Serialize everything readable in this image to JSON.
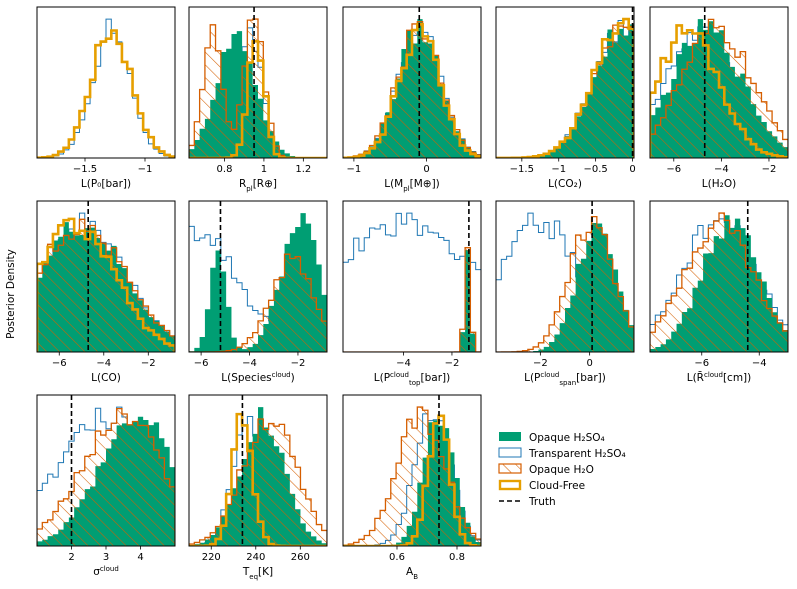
{
  "ylabel": "Posterior Density",
  "colors": {
    "opaque_h2so4": "#009e73",
    "transparent_h2so4": "#1f77b4",
    "opaque_h2o": "#d55e00",
    "cloud_free": "#e69f00",
    "truth": "#000000"
  },
  "legend": [
    {
      "key": "opaque_h2so4",
      "label": "Opaque H₂SO₄",
      "style": "fill"
    },
    {
      "key": "transparent_h2so4",
      "label": "Transparent H₂SO₄",
      "style": "outline"
    },
    {
      "key": "opaque_h2o",
      "label": "Opaque H₂O",
      "style": "hatch"
    },
    {
      "key": "cloud_free",
      "label": "Cloud-Free",
      "style": "thick"
    },
    {
      "key": "truth",
      "label": "Truth",
      "style": "dash"
    }
  ],
  "chart_data": [
    {
      "name": "logP0",
      "type": "histogram",
      "xlabel": "L(P₀[bar])",
      "xlim": [
        -1.9,
        -0.75
      ],
      "ticks": [
        -1.5,
        -1.0
      ],
      "truth": null,
      "series": {
        "cloud_free": {
          "mu": -1.28,
          "sd": 0.17
        },
        "transparent_h2so4": {
          "mu": -1.28,
          "sd": 0.16
        }
      }
    },
    {
      "name": "Rpl",
      "type": "histogram",
      "xlabel": "R_pl[R⊕]",
      "xlim": [
        0.62,
        1.32
      ],
      "ticks": [
        0.8,
        1.0,
        1.2
      ],
      "truth": 0.95,
      "series": {
        "opaque_h2so4": {
          "mu": 0.86,
          "sd": 0.1
        },
        "opaque_h2o": {
          "mu": 0.74,
          "sd": 0.05,
          "mu2": 0.95,
          "sd2": 0.05,
          "w2": 1.2
        },
        "cloud_free": {
          "mu": 0.96,
          "sd": 0.04
        },
        "transparent_h2so4": {
          "mu": 0.93,
          "sd": 0.06
        }
      }
    },
    {
      "name": "Mpl",
      "type": "histogram",
      "xlabel": "L(M_pl[M⊕])",
      "xlim": [
        -1.15,
        0.75
      ],
      "ticks": [
        -1,
        0
      ],
      "truth": -0.1,
      "series": {
        "opaque_h2so4": {
          "mu": -0.1,
          "sd": 0.3
        },
        "opaque_h2o": {
          "mu": -0.1,
          "sd": 0.3
        },
        "cloud_free": {
          "mu": -0.1,
          "sd": 0.28
        },
        "transparent_h2so4": {
          "mu": -0.1,
          "sd": 0.3
        }
      }
    },
    {
      "name": "logCO2",
      "type": "histogram",
      "xlabel": "L(CO₂)",
      "xlim": [
        -1.85,
        0.02
      ],
      "ticks": [
        -1.5,
        -1.0,
        -0.5,
        0.0
      ],
      "truth": 0.0,
      "series": {
        "opaque_h2so4": {
          "mu": -0.12,
          "sd": 0.4,
          "cut": 0
        },
        "opaque_h2o": {
          "mu": -0.12,
          "sd": 0.4,
          "cut": 0
        },
        "cloud_free": {
          "mu": -0.12,
          "sd": 0.4,
          "cut": 0
        },
        "transparent_h2so4": {
          "mu": -0.12,
          "sd": 0.4,
          "cut": 0
        }
      }
    },
    {
      "name": "logH2O",
      "type": "histogram",
      "xlabel": "L(H₂O)",
      "xlim": [
        -7,
        -1.2
      ],
      "ticks": [
        -6,
        -4,
        -2
      ],
      "truth": -4.7,
      "series": {
        "opaque_h2so4": {
          "mu": -4.6,
          "sd": 1.5
        },
        "opaque_h2o": {
          "mu": -4.2,
          "sd": 1.5
        },
        "cloud_free": {
          "mu": -5.4,
          "sd": 1.3
        },
        "transparent_h2so4": {
          "mu": -5.0,
          "sd": 1.4
        }
      }
    },
    {
      "name": "logCO",
      "type": "histogram",
      "xlabel": "L(CO)",
      "xlim": [
        -7,
        -0.8
      ],
      "ticks": [
        -6,
        -4,
        -2
      ],
      "truth": -4.7,
      "series": {
        "opaque_h2so4": {
          "mu": -5.0,
          "sd": 2.0
        },
        "opaque_h2o": {
          "mu": -5.0,
          "sd": 2.0
        },
        "cloud_free": {
          "mu": -5.3,
          "sd": 1.8
        },
        "transparent_h2so4": {
          "mu": -5.0,
          "sd": 2.0
        }
      }
    },
    {
      "name": "logSpecies",
      "type": "histogram",
      "xlabel": "L(Species^cloud)",
      "xlim": [
        -6.5,
        -0.8
      ],
      "ticks": [
        -6,
        -4,
        -2
      ],
      "truth": -5.2,
      "series": {
        "opaque_h2so4": {
          "mu": -5.3,
          "sd": 0.35,
          "mu2": -1.9,
          "sd2": 0.8,
          "w2": 1.4
        },
        "opaque_h2o": {
          "mu": -2.2,
          "sd": 0.9
        },
        "transparent_h2so4": {
          "mu": -6.0,
          "sd": 1.2,
          "flat": 0.3
        }
      }
    },
    {
      "name": "logPtop",
      "type": "histogram",
      "xlabel": "L(P^cloud_top[bar])",
      "xlim": [
        -6.5,
        -0.8
      ],
      "ticks": [
        -4,
        -2
      ],
      "truth": -1.3,
      "series": {
        "opaque_h2so4": {
          "mu": -1.35,
          "sd": 0.12
        },
        "opaque_h2o": {
          "mu": -1.35,
          "sd": 0.12
        },
        "transparent_h2so4": {
          "mu": -4.0,
          "sd": 3.0,
          "flat": 0.15
        }
      }
    },
    {
      "name": "logPspan",
      "type": "histogram",
      "xlabel": "L(P^cloud_span[bar])",
      "xlim": [
        -3.8,
        1.8
      ],
      "ticks": [
        -2,
        0
      ],
      "truth": 0.1,
      "series": {
        "opaque_h2so4": {
          "mu": 0.3,
          "sd": 0.8
        },
        "opaque_h2o": {
          "mu": 0.1,
          "sd": 0.9
        },
        "transparent_h2so4": {
          "mu": -2.0,
          "sd": 1.6
        }
      }
    },
    {
      "name": "logRcloud",
      "type": "histogram",
      "xlabel": "L(R̄^cloud[cm])",
      "xlim": [
        -7.8,
        -3.0
      ],
      "ticks": [
        -6,
        -4
      ],
      "truth": -4.4,
      "series": {
        "opaque_h2so4": {
          "mu": -5.0,
          "sd": 1.0
        },
        "opaque_h2o": {
          "mu": -5.4,
          "sd": 1.2
        },
        "transparent_h2so4": {
          "mu": -5.4,
          "sd": 1.3
        }
      }
    },
    {
      "name": "sigma",
      "type": "histogram",
      "xlabel": "σ^cloud",
      "xlim": [
        1.0,
        5.0
      ],
      "ticks": [
        2,
        3,
        4
      ],
      "truth": 2.0,
      "series": {
        "opaque_h2so4": {
          "mu": 3.9,
          "sd": 1.1
        },
        "opaque_h2o": {
          "mu": 3.5,
          "sd": 1.2
        },
        "transparent_h2so4": {
          "mu": 3.1,
          "sd": 1.5
        }
      }
    },
    {
      "name": "Teq",
      "type": "histogram",
      "xlabel": "T_eq[K]",
      "xlim": [
        210,
        272
      ],
      "ticks": [
        220,
        240,
        260
      ],
      "truth": 234,
      "series": {
        "opaque_h2so4": {
          "mu": 243,
          "sd": 10
        },
        "opaque_h2o": {
          "mu": 246,
          "sd": 12
        },
        "cloud_free": {
          "mu": 234,
          "sd": 4.5
        },
        "transparent_h2so4": {
          "mu": 237,
          "sd": 7
        }
      }
    },
    {
      "name": "AB",
      "type": "histogram",
      "xlabel": "A_B",
      "xlim": [
        0.42,
        0.88
      ],
      "ticks": [
        0.6,
        0.8
      ],
      "truth": 0.74,
      "series": {
        "opaque_h2so4": {
          "mu": 0.74,
          "sd": 0.05
        },
        "opaque_h2o": {
          "mu": 0.68,
          "sd": 0.08
        },
        "cloud_free": {
          "mu": 0.74,
          "sd": 0.035
        },
        "transparent_h2so4": {
          "mu": 0.72,
          "sd": 0.06
        }
      }
    }
  ]
}
